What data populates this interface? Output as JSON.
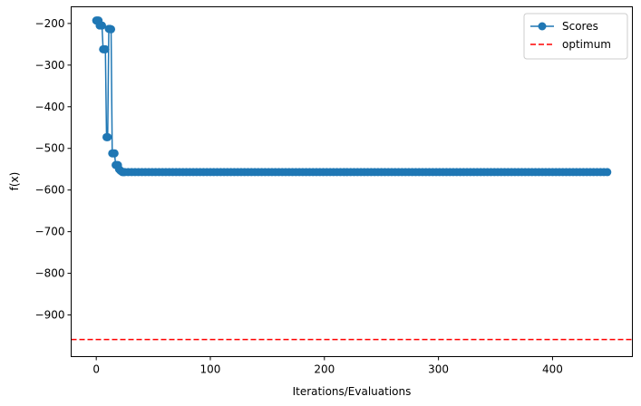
{
  "chart_data": {
    "type": "line",
    "title": "",
    "xlabel": "Iterations/Evaluations",
    "ylabel": "f(x)",
    "xlim": [
      -22,
      470
    ],
    "ylim": [
      -1000,
      -160
    ],
    "xticks": [
      0,
      100,
      200,
      300,
      400
    ],
    "xtick_labels": [
      "0",
      "100",
      "200",
      "300",
      "400"
    ],
    "yticks": [
      -200,
      -300,
      -400,
      -500,
      -600,
      -700,
      -800,
      -900
    ],
    "ytick_labels": [
      "−200",
      "−300",
      "−400",
      "−500",
      "−600",
      "−700",
      "−800",
      "−900"
    ],
    "grid": false,
    "legend_position": "top-right",
    "series": [
      {
        "name": "Scores",
        "color": "#1f77b4",
        "marker": "circle",
        "x": [
          0,
          1,
          2,
          3,
          4,
          5,
          6,
          7,
          8,
          9,
          10,
          11,
          12,
          13,
          14,
          15,
          16,
          17,
          18,
          19,
          20,
          21,
          22,
          23,
          24
        ],
        "y": [
          -193,
          -193,
          -193,
          -205,
          -205,
          -205,
          -262,
          -262,
          -262,
          -473,
          -473,
          -213,
          -213,
          -214,
          -512,
          -512,
          -512,
          -540,
          -540,
          -540,
          -550,
          -553,
          -555,
          -557,
          -557
        ],
        "plateau": {
          "from": 25,
          "to": 449,
          "step": 3,
          "value": -557
        }
      },
      {
        "name": "optimum",
        "color": "#ff0000",
        "style": "dashed",
        "hline": -959
      }
    ]
  }
}
